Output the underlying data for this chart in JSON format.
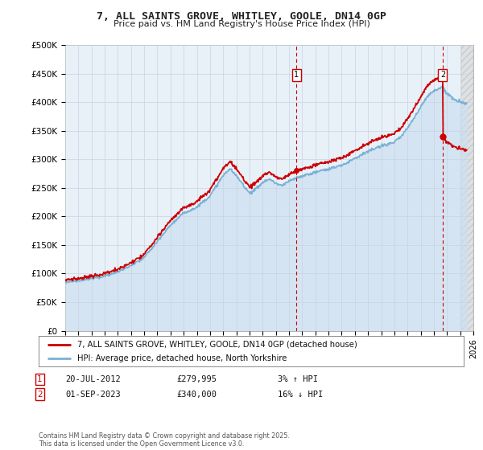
{
  "title": "7, ALL SAINTS GROVE, WHITLEY, GOOLE, DN14 0GP",
  "subtitle": "Price paid vs. HM Land Registry's House Price Index (HPI)",
  "legend_line1": "7, ALL SAINTS GROVE, WHITLEY, GOOLE, DN14 0GP (detached house)",
  "legend_line2": "HPI: Average price, detached house, North Yorkshire",
  "annotation1": {
    "label": "1",
    "date": "20-JUL-2012",
    "price": 279995,
    "note": "3% ↑ HPI"
  },
  "annotation2": {
    "label": "2",
    "date": "01-SEP-2023",
    "price": 340000,
    "note": "16% ↓ HPI"
  },
  "footer": "Contains HM Land Registry data © Crown copyright and database right 2025.\nThis data is licensed under the Open Government Licence v3.0.",
  "xmin": 1995,
  "xmax": 2026,
  "ymin": 0,
  "ymax": 500000,
  "yticks": [
    0,
    50000,
    100000,
    150000,
    200000,
    250000,
    300000,
    350000,
    400000,
    450000,
    500000
  ],
  "line_color_red": "#cc0000",
  "line_color_blue": "#7ab0d4",
  "fill_color_blue": "#cce0f0",
  "background_color": "#ffffff",
  "plot_bg": "#e8f0f8",
  "annotation_color": "#cc0000",
  "dashed_line_color": "#cc0000",
  "sale1_t": 2012.55,
  "sale1_p": 279995,
  "sale2_t": 2023.67,
  "sale2_p": 340000,
  "future_start": 2025.1
}
